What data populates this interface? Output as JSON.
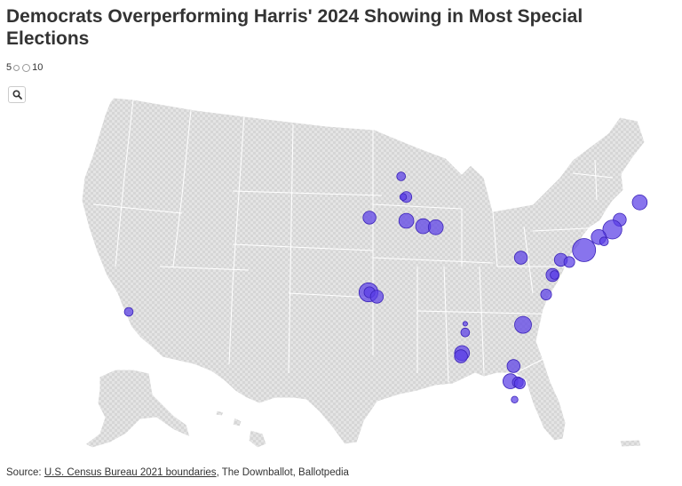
{
  "title": "Democrats Overperforming Harris' 2024 Showing in Most Special Elections",
  "legend": {
    "min_label": "5",
    "max_label": "10"
  },
  "zoom": {
    "icon": "search-icon"
  },
  "source": {
    "prefix": "Source:",
    "link_text": "U.S. Census Bureau 2021 boundaries",
    "rest": ", The Downballot, Ballotpedia"
  },
  "colors": {
    "marker_fill": "#5a3ee6",
    "land": "#e3e3e3",
    "border": "#ffffff"
  },
  "markers": [
    {
      "lon": -69.7,
      "lat": 44.5,
      "size": 6
    },
    {
      "lon": -71.6,
      "lat": 42.9,
      "size": 5
    },
    {
      "lon": -72.3,
      "lat": 42.0,
      "size": 8
    },
    {
      "lon": -73.6,
      "lat": 41.3,
      "size": 6
    },
    {
      "lon": -73.1,
      "lat": 40.9,
      "size": 3
    },
    {
      "lon": -75.0,
      "lat": 40.1,
      "size": 10
    },
    {
      "lon": -77.2,
      "lat": 39.2,
      "size": 5
    },
    {
      "lon": -76.4,
      "lat": 39.0,
      "size": 4
    },
    {
      "lon": -81.0,
      "lat": 39.4,
      "size": 5
    },
    {
      "lon": -78.0,
      "lat": 37.8,
      "size": 5
    },
    {
      "lon": -77.8,
      "lat": 37.8,
      "size": 3
    },
    {
      "lon": -78.6,
      "lat": 36.0,
      "size": 4
    },
    {
      "lon": -80.8,
      "lat": 33.2,
      "size": 7
    },
    {
      "lon": -81.7,
      "lat": 29.4,
      "size": 5
    },
    {
      "lon": -82.0,
      "lat": 28.0,
      "size": 6
    },
    {
      "lon": -81.3,
      "lat": 27.9,
      "size": 4
    },
    {
      "lon": -81.1,
      "lat": 27.8,
      "size": 4
    },
    {
      "lon": -81.6,
      "lat": 26.3,
      "size": 2
    },
    {
      "lon": -86.3,
      "lat": 33.3,
      "size": 1
    },
    {
      "lon": -86.3,
      "lat": 32.5,
      "size": 3
    },
    {
      "lon": -86.6,
      "lat": 30.6,
      "size": 6
    },
    {
      "lon": -86.7,
      "lat": 30.3,
      "size": 5
    },
    {
      "lon": -92.4,
      "lat": 46.9,
      "size": 3
    },
    {
      "lon": -91.9,
      "lat": 45.0,
      "size": 4
    },
    {
      "lon": -92.2,
      "lat": 45.0,
      "size": 2
    },
    {
      "lon": -95.4,
      "lat": 43.1,
      "size": 5
    },
    {
      "lon": -91.9,
      "lat": 42.8,
      "size": 6
    },
    {
      "lon": -90.3,
      "lat": 42.3,
      "size": 6
    },
    {
      "lon": -89.1,
      "lat": 42.2,
      "size": 6
    },
    {
      "lon": -95.5,
      "lat": 36.2,
      "size": 8
    },
    {
      "lon": -95.4,
      "lat": 36.2,
      "size": 4
    },
    {
      "lon": -94.7,
      "lat": 35.8,
      "size": 5
    },
    {
      "lon": -118.3,
      "lat": 34.4,
      "size": 3
    }
  ]
}
